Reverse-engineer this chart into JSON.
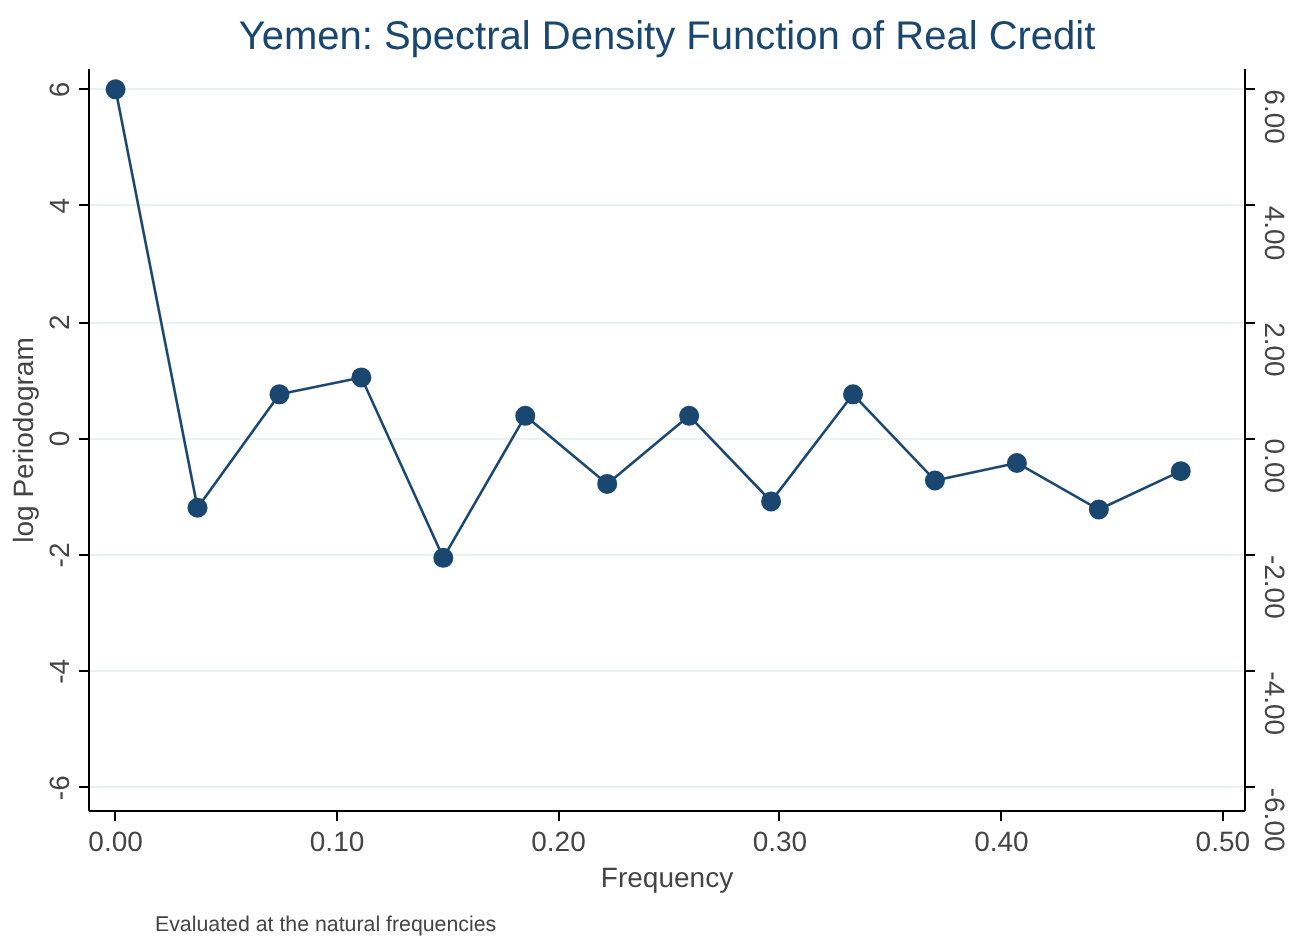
{
  "chart_data": {
    "type": "line",
    "title": "Yemen: Spectral Density Function of Real Credit",
    "xlabel": "Frequency",
    "ylabel": "log Periodogram",
    "annotations": [
      "Evaluated at the natural frequencies"
    ],
    "x": [
      0,
      0.037,
      0.074,
      0.111,
      0.148,
      0.185,
      0.222,
      0.259,
      0.296,
      0.333,
      0.37,
      0.407,
      0.444,
      0.481
    ],
    "series": [
      {
        "color": "#1a476f",
        "values": [
          6.0,
          -1.19,
          0.76,
          1.05,
          -2.05,
          0.39,
          -0.78,
          0.39,
          -1.08,
          0.76,
          -0.72,
          -0.42,
          -1.22,
          -0.56
        ]
      }
    ],
    "xlim": [
      -0.012,
      0.51
    ],
    "xticks": [
      {
        "value": 0,
        "label": "0.00"
      },
      {
        "value": 0.1,
        "label": "0.10"
      },
      {
        "value": 0.2,
        "label": "0.20"
      },
      {
        "value": 0.3,
        "label": "0.30"
      },
      {
        "value": 0.4,
        "label": "0.40"
      },
      {
        "value": 0.5,
        "label": "0.50"
      }
    ],
    "ylim": [
      -6.4,
      6.35
    ],
    "yticks": [
      -6,
      -4,
      -2,
      0,
      2,
      4,
      6
    ],
    "y2lim": [
      -6.4,
      6.35
    ],
    "y2ticks": [
      {
        "value": -6,
        "label": "-6.00"
      },
      {
        "value": -4,
        "label": "-4.00"
      },
      {
        "value": -2,
        "label": "-2.00"
      },
      {
        "value": 0,
        "label": "0.00"
      },
      {
        "value": 2,
        "label": "2.00"
      },
      {
        "value": 4,
        "label": "4.00"
      },
      {
        "value": 6,
        "label": "6.00"
      }
    ],
    "grid": "y",
    "marker": "circle",
    "line_style": "solid"
  }
}
